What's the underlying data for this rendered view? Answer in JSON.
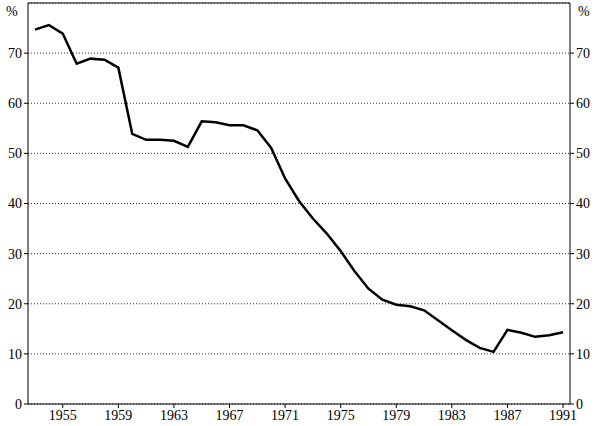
{
  "chart_data": {
    "type": "line",
    "y_label": "%",
    "x": [
      1953,
      1954,
      1955,
      1956,
      1957,
      1958,
      1959,
      1960,
      1961,
      1962,
      1963,
      1964,
      1965,
      1966,
      1967,
      1968,
      1969,
      1970,
      1971,
      1972,
      1973,
      1974,
      1975,
      1976,
      1977,
      1978,
      1979,
      1980,
      1981,
      1982,
      1983,
      1984,
      1985,
      1986,
      1987,
      1988,
      1989,
      1990,
      1991
    ],
    "values": [
      74.7,
      75.6,
      73.9,
      67.9,
      68.9,
      68.7,
      67.1,
      53.9,
      52.7,
      52.7,
      52.5,
      51.3,
      56.4,
      56.2,
      55.6,
      55.6,
      54.6,
      51.1,
      45.0,
      40.5,
      37.0,
      34.0,
      30.5,
      26.5,
      23.0,
      20.8,
      19.8,
      19.5,
      18.7,
      16.7,
      14.7,
      12.8,
      11.2,
      10.4,
      14.8,
      14.2,
      13.4,
      13.7,
      14.3
    ],
    "color": "#000000",
    "xlim": [
      1952.5,
      1991.5
    ],
    "xticks": [
      1955,
      1959,
      1963,
      1967,
      1971,
      1975,
      1979,
      1983,
      1987,
      1991
    ],
    "ylim": [
      0,
      80
    ],
    "yticks": [
      0,
      10,
      20,
      30,
      40,
      50,
      60,
      70
    ],
    "grid": true
  }
}
